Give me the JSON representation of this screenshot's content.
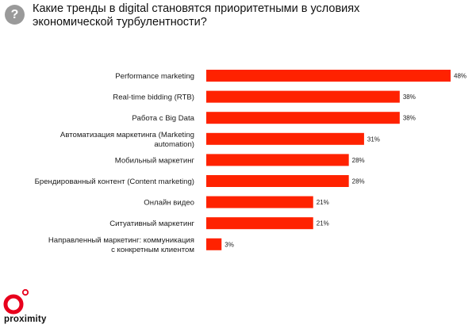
{
  "header": {
    "badge_symbol": "?",
    "title_line1": "Какие тренды в digital становятся приоритетными в условиях",
    "title_line2": "экономической турбулентности?"
  },
  "chart_data": {
    "type": "bar",
    "orientation": "horizontal",
    "bar_color": "#ff2200",
    "categories": [
      [
        "Performance marketing"
      ],
      [
        "Real-time bidding (RTB)"
      ],
      [
        "Работа с Big Data"
      ],
      [
        "Автоматизация маркетинга (Marketing",
        "automation)"
      ],
      [
        "Мобильный маркетинг"
      ],
      [
        "Брендированный контент (Content marketing)"
      ],
      [
        "Онлайн видео"
      ],
      [
        "Ситуативный маркетинг"
      ],
      [
        "Направленный маркетинг: коммуникация",
        "с конкретным клиентом"
      ]
    ],
    "values": [
      48,
      38,
      38,
      31,
      28,
      28,
      21,
      21,
      3
    ],
    "value_labels": [
      "48%",
      "38%",
      "38%",
      "31%",
      "28%",
      "28%",
      "21%",
      "21%",
      "3%"
    ],
    "xlim": [
      0,
      48
    ],
    "grid": false
  },
  "brand": {
    "name": "proximity",
    "logo_color": "#e8001c"
  }
}
